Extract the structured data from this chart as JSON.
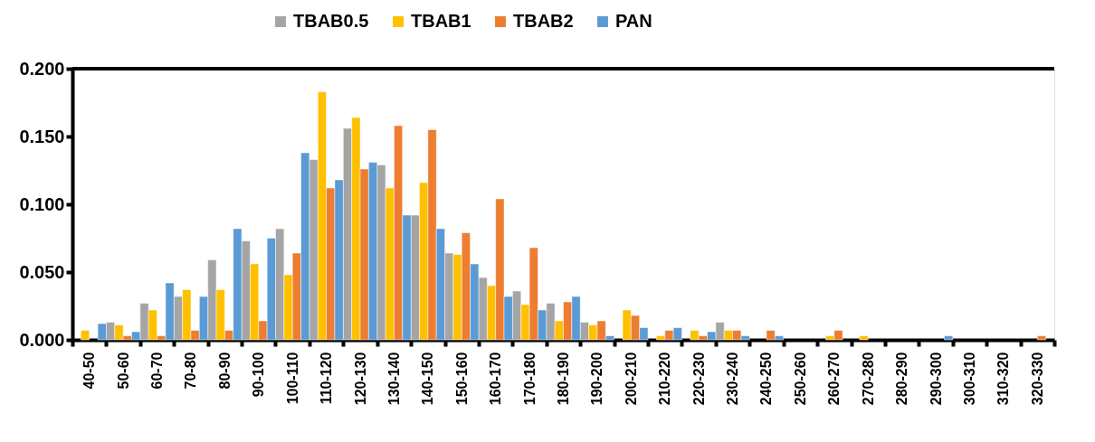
{
  "chart_data": {
    "type": "bar",
    "categories": [
      "40-50",
      "50-60",
      "60-70",
      "70-80",
      "80-90",
      "90-100",
      "100-110",
      "110-120",
      "120-130",
      "130-140",
      "140-150",
      "150-160",
      "160-170",
      "170-180",
      "180-190",
      "190-200",
      "200-210",
      "210-220",
      "220-230",
      "230-240",
      "240-250",
      "250-260",
      "260-270",
      "270-280",
      "280-290",
      "290-300",
      "300-310",
      "310-320",
      "320-330"
    ],
    "series": [
      {
        "name": "TBAB0.5",
        "color": "#a5a5a5",
        "values": [
          null,
          0.013,
          0.027,
          0.032,
          0.059,
          0.073,
          0.082,
          0.133,
          0.156,
          0.129,
          0.092,
          0.064,
          0.046,
          0.036,
          0.027,
          0.013,
          null,
          null,
          null,
          0.013,
          null,
          null,
          null,
          null,
          null,
          null,
          null,
          null,
          null
        ]
      },
      {
        "name": "TBAB1",
        "color": "#ffc000",
        "values": [
          0.007,
          0.011,
          0.022,
          0.037,
          0.037,
          0.056,
          0.048,
          0.183,
          0.164,
          0.112,
          0.116,
          0.063,
          0.04,
          0.026,
          0.014,
          0.011,
          0.022,
          0.003,
          0.007,
          0.007,
          null,
          null,
          0.003,
          0.003,
          null,
          null,
          null,
          null,
          null
        ]
      },
      {
        "name": "TBAB2",
        "color": "#ed7d31",
        "values": [
          null,
          0.003,
          0.003,
          0.007,
          0.007,
          0.014,
          0.064,
          0.112,
          0.126,
          0.158,
          0.155,
          0.079,
          0.104,
          0.068,
          0.028,
          0.014,
          0.018,
          0.007,
          0.003,
          0.007,
          0.007,
          null,
          0.007,
          null,
          null,
          null,
          null,
          null,
          0.003
        ]
      },
      {
        "name": "PAN",
        "color": "#5b9bd5",
        "values": [
          0.012,
          0.006,
          0.042,
          0.032,
          0.082,
          0.075,
          0.138,
          0.118,
          0.131,
          0.092,
          0.082,
          0.056,
          0.032,
          0.022,
          0.032,
          0.003,
          0.009,
          0.009,
          0.006,
          0.003,
          0.003,
          null,
          null,
          null,
          null,
          0.003,
          null,
          null,
          null
        ]
      }
    ],
    "ylim": [
      0,
      0.2
    ],
    "yticks": [
      {
        "value": 0,
        "label": "0.000"
      },
      {
        "value": 0.05,
        "label": "0.050"
      },
      {
        "value": 0.1,
        "label": "0.100"
      },
      {
        "value": 0.15,
        "label": "0.150"
      },
      {
        "value": 0.2,
        "label": "0.200"
      }
    ],
    "grid": false,
    "legend": "top"
  }
}
